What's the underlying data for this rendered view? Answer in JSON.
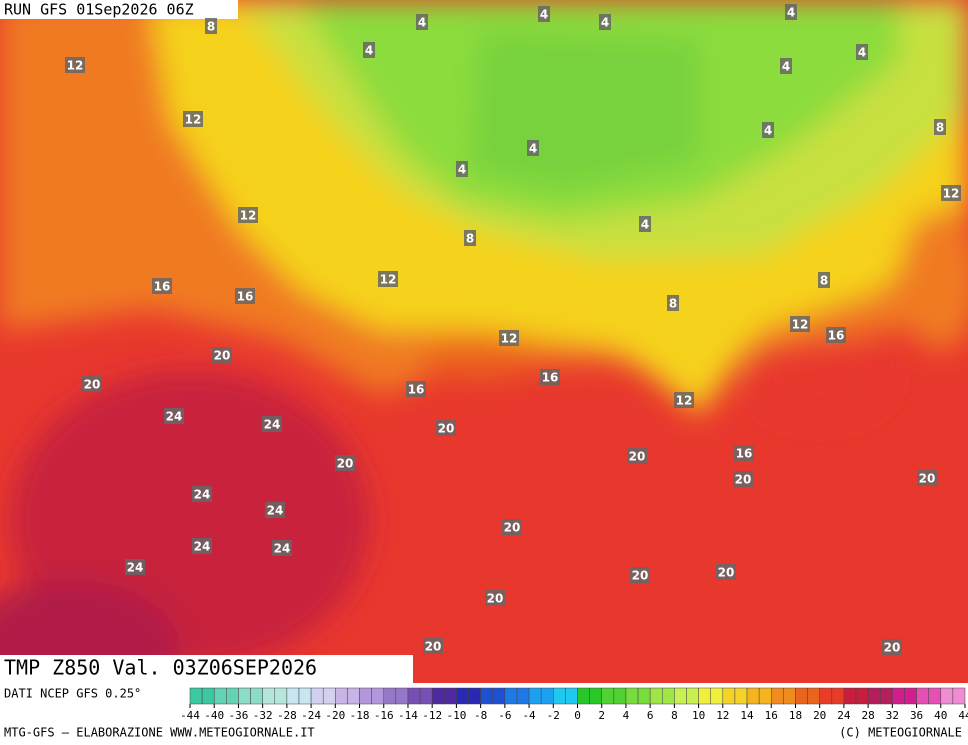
{
  "header": {
    "run": "RUN GFS 01Sep2026 06Z"
  },
  "map": {
    "labels": [
      "8",
      "4",
      "4",
      "4",
      "4",
      "4",
      "4",
      "12",
      "4",
      "12",
      "8",
      "4",
      "4",
      "4",
      "12",
      "12",
      "4",
      "8",
      "8",
      "12",
      "16",
      "16",
      "8",
      "12",
      "16",
      "12",
      "20",
      "20",
      "16",
      "16",
      "12",
      "24",
      "24",
      "20",
      "20",
      "20",
      "16",
      "20",
      "20",
      "24",
      "24",
      "20",
      "24",
      "24",
      "24",
      "20",
      "20",
      "20",
      "20",
      "20"
    ]
  },
  "footer": {
    "variable": "TMP Z850 Val. 03Z06SEP2026",
    "source": "DATI NCEP GFS 0.25°",
    "credit": "MTG-GFS — ELABORAZIONE WWW.METEOGIORNALE.IT",
    "copyright": "(C) METEOGIORNALE"
  },
  "colorbar": {
    "ticks": [
      -44,
      -40,
      -36,
      -32,
      -28,
      -24,
      -20,
      -18,
      -16,
      -14,
      -12,
      -10,
      -8,
      -6,
      -4,
      -2,
      0,
      2,
      4,
      6,
      8,
      10,
      12,
      14,
      16,
      18,
      20,
      24,
      28,
      32,
      36,
      40,
      44
    ],
    "colors": [
      "#3cc8a0",
      "#64d2b4",
      "#8cdcc8",
      "#b4e6dc",
      "#c8e6f0",
      "#d2d2f0",
      "#c8b4e6",
      "#b496dc",
      "#9678c8",
      "#7850b4",
      "#5028a0",
      "#2828b4",
      "#1e50d2",
      "#1e78e6",
      "#1ea0f0",
      "#1ec8f0",
      "#28c828",
      "#50d232",
      "#78dc3c",
      "#a0e646",
      "#c8f050",
      "#f0f03c",
      "#f5d228",
      "#f5b41e",
      "#f08c1e",
      "#eb641e",
      "#e63c28",
      "#c81e3c",
      "#b41e5a",
      "#d21e8c",
      "#e650b4",
      "#f08cd2"
    ]
  }
}
